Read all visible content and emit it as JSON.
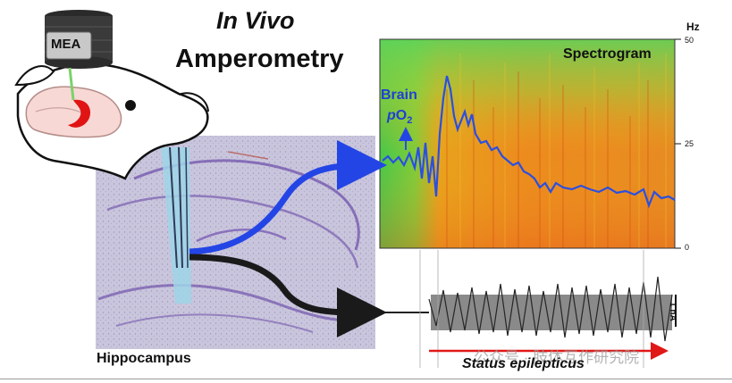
{
  "title": {
    "line1": "In Vivo",
    "line2": "Amperometry"
  },
  "mea_label": "MEA",
  "spectrogram": {
    "title": "Spectrogram",
    "axis_unit": "Hz",
    "ticks": [
      "50",
      "25",
      "0"
    ]
  },
  "brain_po2": {
    "line1": "Brain",
    "prefix": "p",
    "main": "O",
    "sub": "2"
  },
  "scale_bar": "1 nA",
  "hippocampus_label": "Hippocampus",
  "status_label": "Status epilepticus",
  "watermark": "公众号 · 肢体互作研究院",
  "colors": {
    "blue_trace": "#2b4fe0",
    "arrow_red": "#e01818",
    "black_arrow": "#1a1a1a"
  }
}
